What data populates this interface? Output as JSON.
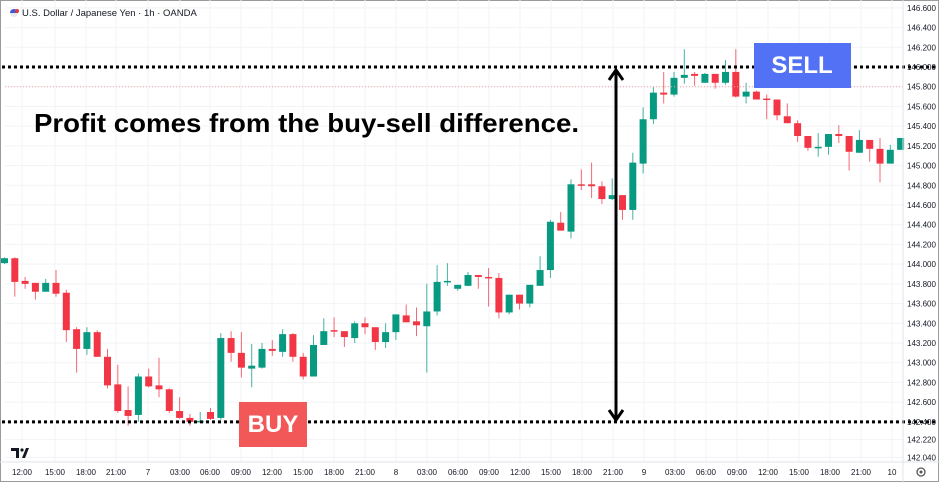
{
  "header": {
    "title": "U.S. Dollar / Japanese Yen · 1h · OANDA"
  },
  "annotation": {
    "text": "Profit comes from the buy-sell difference.",
    "buy_label": "BUY",
    "sell_label": "SELL"
  },
  "colors": {
    "up": "#089981",
    "down": "#f23645",
    "buy_badge": "#f25858",
    "sell_badge": "#5271f5",
    "grid": "#f2f3f5"
  },
  "icons": {
    "logo": "tradingview-logo",
    "settings": "gear-icon",
    "flag": "us-jp-flag-icon"
  },
  "chart_data": {
    "type": "candlestick",
    "title": "U.S. Dollar / Japanese Yen · 1h · OANDA",
    "ylim": [
      142.0,
      146.65
    ],
    "y_ticks": [
      "146.600",
      "146.400",
      "146.200",
      "146.000",
      "145.800",
      "145.600",
      "145.400",
      "145.200",
      "145.000",
      "144.800",
      "144.600",
      "144.400",
      "144.200",
      "144.000",
      "143.800",
      "143.600",
      "143.400",
      "143.200",
      "143.000",
      "142.800",
      "142.600",
      "142.400",
      "142.220",
      "142.040"
    ],
    "x_ticks": [
      "12:00",
      "15:00",
      "18:00",
      "21:00",
      "7",
      "03:00",
      "06:00",
      "09:00",
      "12:00",
      "15:00",
      "18:00",
      "21:00",
      "8",
      "03:00",
      "06:00",
      "09:00",
      "12:00",
      "15:00",
      "18:00",
      "21:00",
      "9",
      "03:00",
      "06:00",
      "09:00",
      "12:00",
      "15:00",
      "18:00",
      "21:00",
      "10"
    ],
    "buy_level": 142.4,
    "sell_level": 146.0,
    "current_price_line": 145.8,
    "ohlc": [
      [
        144.01,
        144.07,
        144.0,
        144.06
      ],
      [
        144.06,
        144.07,
        143.67,
        143.82
      ],
      [
        143.83,
        143.87,
        143.75,
        143.8
      ],
      [
        143.81,
        143.81,
        143.64,
        143.72
      ],
      [
        143.72,
        143.85,
        143.72,
        143.81
      ],
      [
        143.81,
        143.94,
        143.67,
        143.7
      ],
      [
        143.71,
        143.74,
        143.21,
        143.33
      ],
      [
        143.34,
        143.36,
        142.9,
        143.14
      ],
      [
        143.14,
        143.36,
        143.08,
        143.31
      ],
      [
        143.31,
        143.33,
        143.06,
        143.06
      ],
      [
        143.06,
        143.14,
        142.74,
        142.77
      ],
      [
        142.78,
        142.98,
        142.49,
        142.51
      ],
      [
        142.52,
        142.76,
        142.36,
        142.46
      ],
      [
        142.47,
        142.89,
        142.4,
        142.86
      ],
      [
        142.86,
        142.94,
        142.75,
        142.76
      ],
      [
        142.77,
        143.05,
        142.65,
        142.73
      ],
      [
        142.73,
        142.74,
        142.49,
        142.51
      ],
      [
        142.51,
        142.65,
        142.43,
        142.44
      ],
      [
        142.44,
        142.48,
        142.36,
        142.4
      ],
      [
        142.4,
        142.5,
        142.39,
        142.41
      ],
      [
        142.5,
        142.54,
        142.42,
        142.43
      ],
      [
        142.44,
        143.3,
        142.42,
        143.25
      ],
      [
        143.25,
        143.32,
        143.01,
        143.1
      ],
      [
        143.1,
        143.31,
        142.85,
        142.95
      ],
      [
        142.94,
        143.19,
        142.75,
        142.97
      ],
      [
        142.95,
        143.2,
        142.94,
        143.14
      ],
      [
        143.14,
        143.23,
        143.07,
        143.12
      ],
      [
        143.11,
        143.34,
        143.06,
        143.29
      ],
      [
        143.29,
        143.3,
        143.01,
        143.06
      ],
      [
        143.06,
        143.1,
        142.83,
        142.86
      ],
      [
        142.86,
        143.28,
        142.86,
        143.18
      ],
      [
        143.18,
        143.45,
        143.18,
        143.32
      ],
      [
        143.33,
        143.46,
        143.26,
        143.32
      ],
      [
        143.32,
        143.32,
        143.16,
        143.26
      ],
      [
        143.25,
        143.42,
        143.2,
        143.4
      ],
      [
        143.4,
        143.46,
        143.29,
        143.36
      ],
      [
        143.36,
        143.36,
        143.13,
        143.21
      ],
      [
        143.21,
        143.4,
        143.15,
        143.31
      ],
      [
        143.31,
        143.49,
        143.23,
        143.49
      ],
      [
        143.48,
        143.59,
        143.41,
        143.41
      ],
      [
        143.42,
        143.56,
        143.27,
        143.38
      ],
      [
        143.37,
        143.8,
        142.9,
        143.52
      ],
      [
        143.52,
        143.99,
        143.48,
        143.82
      ],
      [
        143.82,
        144.01,
        143.78,
        143.83
      ],
      [
        143.75,
        143.79,
        143.73,
        143.79
      ],
      [
        143.78,
        143.92,
        143.78,
        143.89
      ],
      [
        143.89,
        143.89,
        143.75,
        143.87
      ],
      [
        143.87,
        143.96,
        143.57,
        143.86
      ],
      [
        143.86,
        143.91,
        143.45,
        143.51
      ],
      [
        143.51,
        143.69,
        143.49,
        143.69
      ],
      [
        143.69,
        143.69,
        143.54,
        143.6
      ],
      [
        143.6,
        143.79,
        143.56,
        143.79
      ],
      [
        143.78,
        144.08,
        143.78,
        143.94
      ],
      [
        143.94,
        144.45,
        143.86,
        144.43
      ],
      [
        144.42,
        144.53,
        144.34,
        144.34
      ],
      [
        144.33,
        144.86,
        144.26,
        144.81
      ],
      [
        144.81,
        144.96,
        144.75,
        144.8
      ],
      [
        144.81,
        145.03,
        144.67,
        144.79
      ],
      [
        144.79,
        144.84,
        144.61,
        144.66
      ],
      [
        144.66,
        144.87,
        144.65,
        144.7
      ],
      [
        144.7,
        144.7,
        144.45,
        144.55
      ],
      [
        144.55,
        145.13,
        144.45,
        145.03
      ],
      [
        145.02,
        145.59,
        144.92,
        145.47
      ],
      [
        145.47,
        145.8,
        145.42,
        145.74
      ],
      [
        145.74,
        145.95,
        145.63,
        145.72
      ],
      [
        145.72,
        145.95,
        145.7,
        145.89
      ],
      [
        145.89,
        146.18,
        145.83,
        145.92
      ],
      [
        145.93,
        145.95,
        145.81,
        145.91
      ],
      [
        145.84,
        145.94,
        145.84,
        145.93
      ],
      [
        145.93,
        145.93,
        145.78,
        145.84
      ],
      [
        145.84,
        146.07,
        145.82,
        145.95
      ],
      [
        145.95,
        146.18,
        145.69,
        145.7
      ],
      [
        145.7,
        145.84,
        145.63,
        145.75
      ],
      [
        145.75,
        145.76,
        145.67,
        145.67
      ],
      [
        145.68,
        145.72,
        145.47,
        145.67
      ],
      [
        145.67,
        145.67,
        145.46,
        145.51
      ],
      [
        145.5,
        145.63,
        145.43,
        145.43
      ],
      [
        145.43,
        145.46,
        145.24,
        145.3
      ],
      [
        145.3,
        145.3,
        145.15,
        145.18
      ],
      [
        145.18,
        145.33,
        145.09,
        145.19
      ],
      [
        145.19,
        145.32,
        145.11,
        145.32
      ],
      [
        145.32,
        145.41,
        145.23,
        145.3
      ],
      [
        145.3,
        145.3,
        144.95,
        145.14
      ],
      [
        145.13,
        145.36,
        145.13,
        145.26
      ],
      [
        145.26,
        145.26,
        145.04,
        145.17
      ],
      [
        145.17,
        145.28,
        144.83,
        145.02
      ],
      [
        145.02,
        145.21,
        145.02,
        145.16
      ],
      [
        145.16,
        145.28,
        145.16,
        145.28
      ]
    ]
  }
}
